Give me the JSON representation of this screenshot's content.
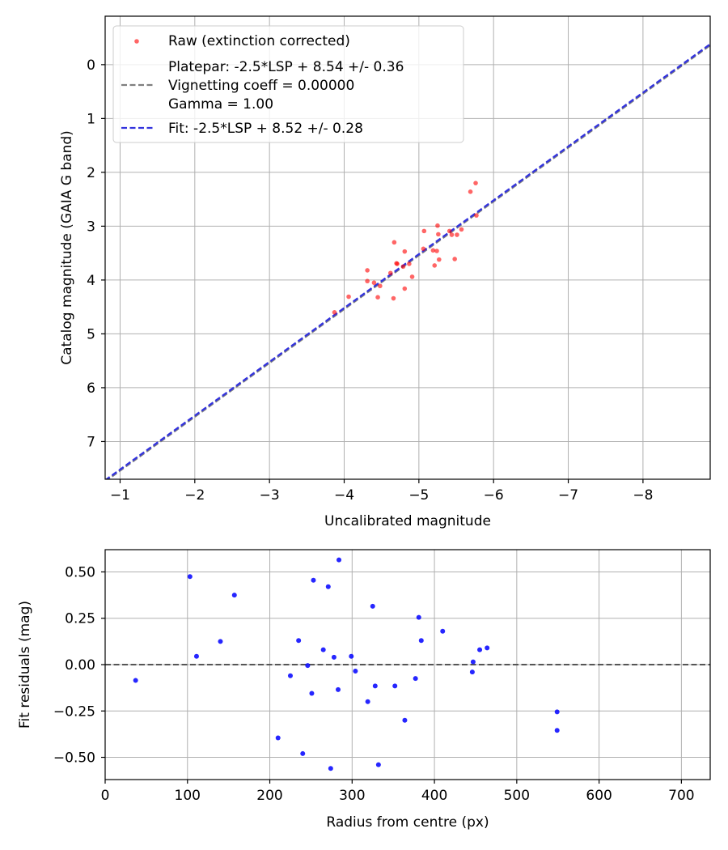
{
  "chart_data": [
    {
      "type": "scatter",
      "xlabel": "Uncalibrated magnitude",
      "ylabel": "Catalog magnitude (GAIA G band)",
      "xlim": [
        -0.8,
        -8.9
      ],
      "ylim": [
        7.7,
        -0.9
      ],
      "x_inverted": true,
      "y_inverted": true,
      "grid": true,
      "legend_position": "top-left",
      "xticks": [
        -1,
        -2,
        -3,
        -4,
        -5,
        -6,
        -7,
        -8
      ],
      "yticks": [
        0,
        1,
        2,
        3,
        4,
        5,
        6,
        7
      ],
      "xtick_labels": [
        "−1",
        "−2",
        "−3",
        "−4",
        "−5",
        "−6",
        "−7",
        "−8"
      ],
      "ytick_labels": [
        "0",
        "1",
        "2",
        "3",
        "4",
        "5",
        "6",
        "7"
      ],
      "legend": {
        "raw": "Raw (extinction corrected)",
        "platepar": "Platepar: -2.5*LSP + 8.54 +/- 0.36",
        "vignetting": "Vignetting coeff = 0.00000",
        "gamma": "Gamma = 1.00",
        "fit": "Fit: -2.5*LSP + 8.52 +/- 0.28"
      },
      "platepar_line": {
        "slope": 1.0,
        "intercept": 8.54
      },
      "fit_line": {
        "slope": 1.0,
        "intercept": 8.52
      },
      "series": [
        {
          "name": "Raw (extinction corrected)",
          "color": "#ff0000",
          "points": [
            [
              -3.87,
              4.6
            ],
            [
              -4.06,
              4.31
            ],
            [
              -4.31,
              3.82
            ],
            [
              -4.31,
              4.02
            ],
            [
              -4.4,
              4.05
            ],
            [
              -4.45,
              4.32
            ],
            [
              -4.48,
              4.11
            ],
            [
              -4.62,
              3.87
            ],
            [
              -4.66,
              4.34
            ],
            [
              -4.67,
              3.3
            ],
            [
              -4.7,
              3.69
            ],
            [
              -4.71,
              3.7
            ],
            [
              -4.79,
              3.75
            ],
            [
              -4.81,
              3.47
            ],
            [
              -4.81,
              4.16
            ],
            [
              -4.87,
              3.7
            ],
            [
              -4.91,
              3.94
            ],
            [
              -5.06,
              3.42
            ],
            [
              -5.07,
              3.09
            ],
            [
              -5.19,
              3.45
            ],
            [
              -5.21,
              3.73
            ],
            [
              -5.24,
              3.46
            ],
            [
              -5.25,
              2.99
            ],
            [
              -5.26,
              3.15
            ],
            [
              -5.27,
              3.62
            ],
            [
              -5.41,
              3.09
            ],
            [
              -5.44,
              3.16
            ],
            [
              -5.48,
              3.61
            ],
            [
              -5.51,
              3.16
            ],
            [
              -5.57,
              3.06
            ],
            [
              -5.69,
              2.36
            ],
            [
              -5.76,
              2.2
            ],
            [
              -5.77,
              2.8
            ]
          ]
        }
      ]
    },
    {
      "type": "scatter",
      "xlabel": "Radius from centre (px)",
      "ylabel": "Fit residuals (mag)",
      "xlim": [
        0,
        735
      ],
      "ylim": [
        -0.62,
        0.62
      ],
      "grid": true,
      "xticks": [
        0,
        100,
        200,
        300,
        400,
        500,
        600,
        700
      ],
      "yticks": [
        -0.5,
        -0.25,
        0.0,
        0.25,
        0.5
      ],
      "xtick_labels": [
        "0",
        "100",
        "200",
        "300",
        "400",
        "500",
        "600",
        "700"
      ],
      "ytick_labels": [
        "−0.50",
        "−0.25",
        "0.00",
        "0.25",
        "0.50"
      ],
      "zero_line": 0.0,
      "series": [
        {
          "name": "residuals",
          "color": "#0000ff",
          "points": [
            [
              37,
              -0.085
            ],
            [
              103,
              0.475
            ],
            [
              111,
              0.045
            ],
            [
              140,
              0.125
            ],
            [
              157,
              0.375
            ],
            [
              210,
              -0.395
            ],
            [
              225,
              -0.06
            ],
            [
              235,
              0.13
            ],
            [
              240,
              -0.48
            ],
            [
              246,
              -0.005
            ],
            [
              251,
              -0.155
            ],
            [
              253,
              0.455
            ],
            [
              265,
              0.08
            ],
            [
              271,
              0.42
            ],
            [
              274,
              -0.56
            ],
            [
              278,
              0.04
            ],
            [
              283,
              -0.135
            ],
            [
              284,
              0.565
            ],
            [
              299,
              0.045
            ],
            [
              304,
              -0.035
            ],
            [
              319,
              -0.2
            ],
            [
              325,
              0.315
            ],
            [
              328,
              -0.115
            ],
            [
              332,
              -0.54
            ],
            [
              352,
              -0.115
            ],
            [
              364,
              -0.3
            ],
            [
              377,
              -0.075
            ],
            [
              381,
              0.255
            ],
            [
              384,
              0.13
            ],
            [
              410,
              0.18
            ],
            [
              446,
              -0.04
            ],
            [
              447,
              0.015
            ],
            [
              455,
              0.08
            ],
            [
              464,
              0.09
            ],
            [
              549,
              -0.255
            ],
            [
              549,
              -0.355
            ]
          ]
        }
      ]
    }
  ]
}
